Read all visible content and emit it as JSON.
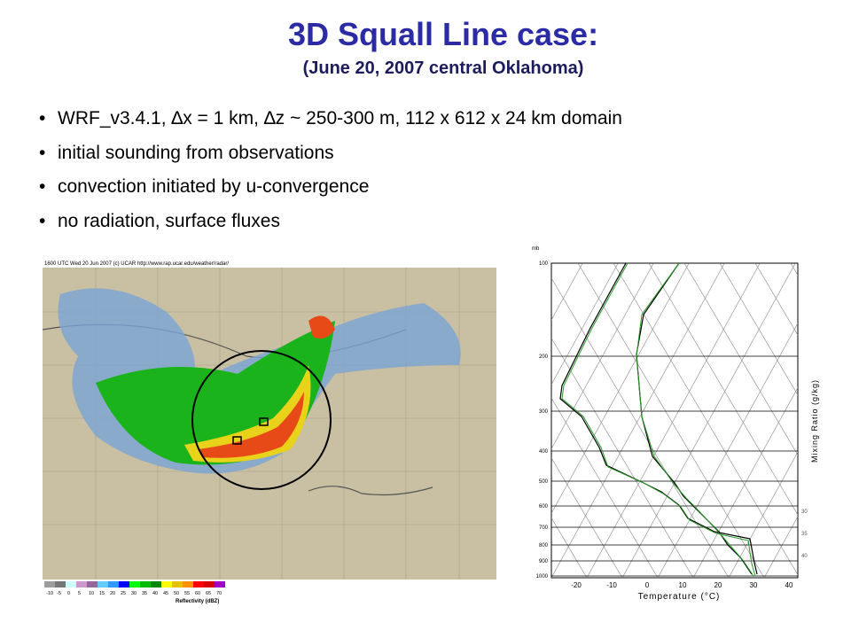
{
  "slide": {
    "title": "3D Squall Line case:",
    "subtitle": "(June 20, 2007 central Oklahoma)",
    "bullets": [
      "WRF_v3.4.1, ∆x = 1 km, ∆z ~ 250-300 m, 112 x 612 x 24 km domain",
      "initial sounding from observations",
      "convection initiated by u-convergence",
      "no radiation, surface fluxes"
    ]
  },
  "radar": {
    "header": "1600 UTC Wed 20 Jun 2007 (c) UCAR    http://www.rap.ucar.edu/weather/radar/",
    "scale_labels": [
      "-10",
      "-5",
      "0",
      "5",
      "10",
      "15",
      "20",
      "25",
      "30",
      "35",
      "40",
      "45",
      "50",
      "55",
      "60",
      "65",
      "70"
    ],
    "scale_title": "Reflectivity (dBZ)"
  },
  "sounding": {
    "pressure_unit": "mb",
    "pressure_labels": [
      "100",
      "200",
      "300",
      "400",
      "500",
      "600",
      "700",
      "800",
      "900",
      "1000"
    ],
    "temperature_labels": [
      "-20",
      "-10",
      "0",
      "10",
      "20",
      "30",
      "40"
    ],
    "x_title": "Temperature (°C)",
    "mixing_ratio_title": "Mixing Ratio (g/kg)",
    "theta_labels": [
      "30",
      "35",
      "40"
    ]
  }
}
